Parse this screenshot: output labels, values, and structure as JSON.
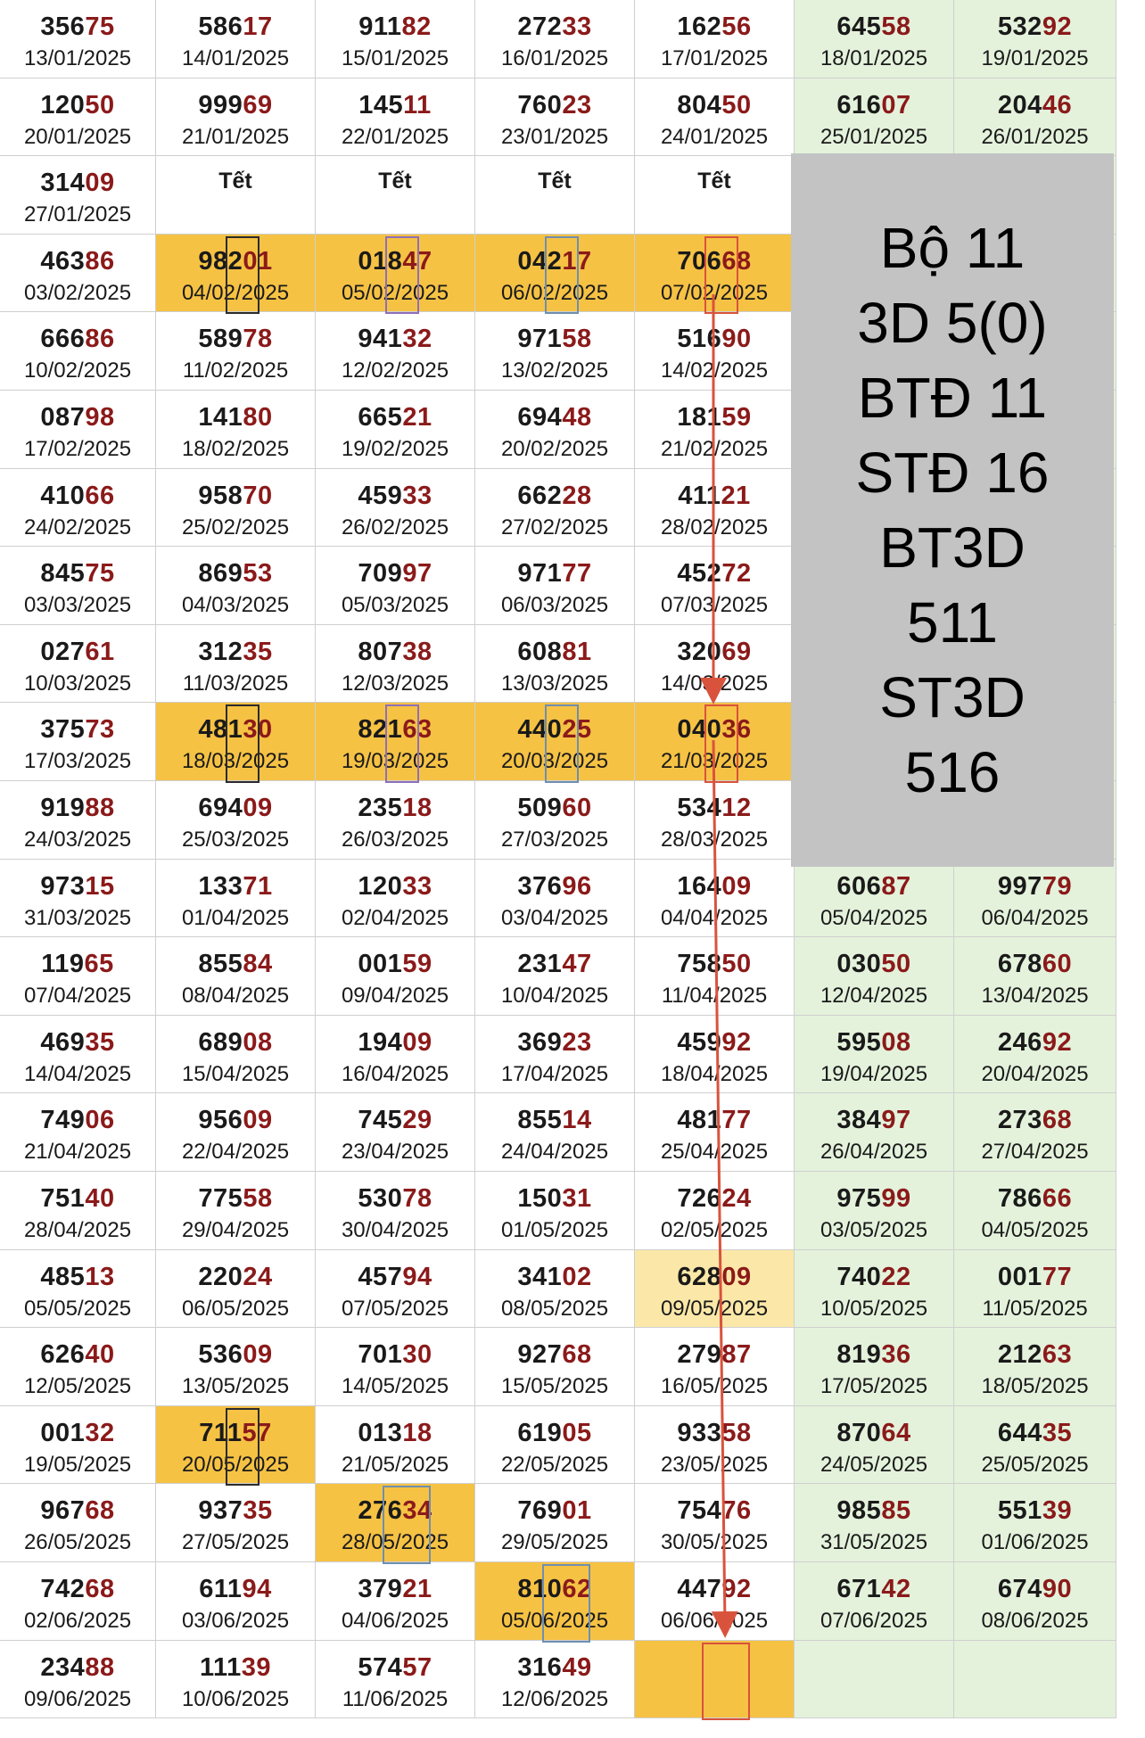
{
  "rows": [
    [
      [
        "35675",
        "13/01/2025"
      ],
      [
        "58617",
        "14/01/2025"
      ],
      [
        "91182",
        "15/01/2025"
      ],
      [
        "27233",
        "16/01/2025"
      ],
      [
        "16256",
        "17/01/2025"
      ],
      [
        "64558",
        "18/01/2025"
      ],
      [
        "53292",
        "19/01/2025"
      ]
    ],
    [
      [
        "12050",
        "20/01/2025"
      ],
      [
        "99969",
        "21/01/2025"
      ],
      [
        "14511",
        "22/01/2025"
      ],
      [
        "76023",
        "23/01/2025"
      ],
      [
        "80450",
        "24/01/2025"
      ],
      [
        "61607",
        "25/01/2025"
      ],
      [
        "20446",
        "26/01/2025"
      ]
    ],
    [
      [
        "31409",
        "27/01/2025"
      ],
      [
        "Tết",
        ""
      ],
      [
        "Tết",
        ""
      ],
      [
        "Tết",
        ""
      ],
      [
        "Tết",
        ""
      ],
      [
        "",
        ""
      ],
      [
        "",
        ""
      ]
    ],
    [
      [
        "46386",
        "03/02/2025"
      ],
      [
        "98201",
        "04/02/2025"
      ],
      [
        "01847",
        "05/02/2025"
      ],
      [
        "04217",
        "06/02/2025"
      ],
      [
        "70668",
        "07/02/2025"
      ],
      [
        "",
        ""
      ],
      [
        "",
        ""
      ]
    ],
    [
      [
        "66686",
        "10/02/2025"
      ],
      [
        "58978",
        "11/02/2025"
      ],
      [
        "94132",
        "12/02/2025"
      ],
      [
        "97158",
        "13/02/2025"
      ],
      [
        "51690",
        "14/02/2025"
      ],
      [
        "",
        ""
      ],
      [
        "",
        ""
      ]
    ],
    [
      [
        "08798",
        "17/02/2025"
      ],
      [
        "14180",
        "18/02/2025"
      ],
      [
        "66521",
        "19/02/2025"
      ],
      [
        "69448",
        "20/02/2025"
      ],
      [
        "18159",
        "21/02/2025"
      ],
      [
        "",
        ""
      ],
      [
        "",
        ""
      ]
    ],
    [
      [
        "41066",
        "24/02/2025"
      ],
      [
        "95870",
        "25/02/2025"
      ],
      [
        "45933",
        "26/02/2025"
      ],
      [
        "66228",
        "27/02/2025"
      ],
      [
        "41121",
        "28/02/2025"
      ],
      [
        "",
        ""
      ],
      [
        "",
        ""
      ]
    ],
    [
      [
        "84575",
        "03/03/2025"
      ],
      [
        "86953",
        "04/03/2025"
      ],
      [
        "70997",
        "05/03/2025"
      ],
      [
        "97177",
        "06/03/2025"
      ],
      [
        "45272",
        "07/03/2025"
      ],
      [
        "",
        ""
      ],
      [
        "",
        ""
      ]
    ],
    [
      [
        "02761",
        "10/03/2025"
      ],
      [
        "31235",
        "11/03/2025"
      ],
      [
        "80738",
        "12/03/2025"
      ],
      [
        "60881",
        "13/03/2025"
      ],
      [
        "32069",
        "14/03/2025"
      ],
      [
        "",
        ""
      ],
      [
        "",
        ""
      ]
    ],
    [
      [
        "37573",
        "17/03/2025"
      ],
      [
        "48130",
        "18/03/2025"
      ],
      [
        "82163",
        "19/03/2025"
      ],
      [
        "44025",
        "20/03/2025"
      ],
      [
        "04036",
        "21/03/2025"
      ],
      [
        "",
        ""
      ],
      [
        "",
        ""
      ]
    ],
    [
      [
        "91988",
        "24/03/2025"
      ],
      [
        "69409",
        "25/03/2025"
      ],
      [
        "23518",
        "26/03/2025"
      ],
      [
        "50960",
        "27/03/2025"
      ],
      [
        "53412",
        "28/03/2025"
      ],
      [
        "",
        ""
      ],
      [
        "",
        ""
      ]
    ],
    [
      [
        "97315",
        "31/03/2025"
      ],
      [
        "13371",
        "01/04/2025"
      ],
      [
        "12033",
        "02/04/2025"
      ],
      [
        "37696",
        "03/04/2025"
      ],
      [
        "16409",
        "04/04/2025"
      ],
      [
        "60687",
        "05/04/2025"
      ],
      [
        "99779",
        "06/04/2025"
      ]
    ],
    [
      [
        "11965",
        "07/04/2025"
      ],
      [
        "85584",
        "08/04/2025"
      ],
      [
        "00159",
        "09/04/2025"
      ],
      [
        "23147",
        "10/04/2025"
      ],
      [
        "75850",
        "11/04/2025"
      ],
      [
        "03050",
        "12/04/2025"
      ],
      [
        "67860",
        "13/04/2025"
      ]
    ],
    [
      [
        "46935",
        "14/04/2025"
      ],
      [
        "68908",
        "15/04/2025"
      ],
      [
        "19409",
        "16/04/2025"
      ],
      [
        "36923",
        "17/04/2025"
      ],
      [
        "45992",
        "18/04/2025"
      ],
      [
        "59508",
        "19/04/2025"
      ],
      [
        "24692",
        "20/04/2025"
      ]
    ],
    [
      [
        "74906",
        "21/04/2025"
      ],
      [
        "95609",
        "22/04/2025"
      ],
      [
        "74529",
        "23/04/2025"
      ],
      [
        "85514",
        "24/04/2025"
      ],
      [
        "48177",
        "25/04/2025"
      ],
      [
        "38497",
        "26/04/2025"
      ],
      [
        "27368",
        "27/04/2025"
      ]
    ],
    [
      [
        "75140",
        "28/04/2025"
      ],
      [
        "77558",
        "29/04/2025"
      ],
      [
        "53078",
        "30/04/2025"
      ],
      [
        "15031",
        "01/05/2025"
      ],
      [
        "72624",
        "02/05/2025"
      ],
      [
        "97599",
        "03/05/2025"
      ],
      [
        "78666",
        "04/05/2025"
      ]
    ],
    [
      [
        "48513",
        "05/05/2025"
      ],
      [
        "22024",
        "06/05/2025"
      ],
      [
        "45794",
        "07/05/2025"
      ],
      [
        "34102",
        "08/05/2025"
      ],
      [
        "62809",
        "09/05/2025"
      ],
      [
        "74022",
        "10/05/2025"
      ],
      [
        "00177",
        "11/05/2025"
      ]
    ],
    [
      [
        "62640",
        "12/05/2025"
      ],
      [
        "53609",
        "13/05/2025"
      ],
      [
        "70130",
        "14/05/2025"
      ],
      [
        "92768",
        "15/05/2025"
      ],
      [
        "27987",
        "16/05/2025"
      ],
      [
        "81936",
        "17/05/2025"
      ],
      [
        "21263",
        "18/05/2025"
      ]
    ],
    [
      [
        "00132",
        "19/05/2025"
      ],
      [
        "71157",
        "20/05/2025"
      ],
      [
        "01318",
        "21/05/2025"
      ],
      [
        "61905",
        "22/05/2025"
      ],
      [
        "93358",
        "23/05/2025"
      ],
      [
        "87064",
        "24/05/2025"
      ],
      [
        "64435",
        "25/05/2025"
      ]
    ],
    [
      [
        "96768",
        "26/05/2025"
      ],
      [
        "93735",
        "27/05/2025"
      ],
      [
        "27634",
        "28/05/2025"
      ],
      [
        "76901",
        "29/05/2025"
      ],
      [
        "75476",
        "30/05/2025"
      ],
      [
        "98585",
        "31/05/2025"
      ],
      [
        "55139",
        "01/06/2025"
      ]
    ],
    [
      [
        "74268",
        "02/06/2025"
      ],
      [
        "61194",
        "03/06/2025"
      ],
      [
        "37921",
        "04/06/2025"
      ],
      [
        "81062",
        "05/06/2025"
      ],
      [
        "44792",
        "06/06/2025"
      ],
      [
        "67142",
        "07/06/2025"
      ],
      [
        "67490",
        "08/06/2025"
      ]
    ],
    [
      [
        "23488",
        "09/06/2025"
      ],
      [
        "11139",
        "10/06/2025"
      ],
      [
        "57457",
        "11/06/2025"
      ],
      [
        "31649",
        "12/06/2025"
      ],
      [
        "",
        ""
      ],
      [
        "",
        ""
      ],
      [
        "",
        ""
      ]
    ]
  ],
  "summary": [
    "Bộ 11",
    "3D 5(0)",
    "BTĐ 11",
    "STĐ 16",
    "BT3D",
    "511",
    "ST3D",
    "516"
  ],
  "colors": {
    "highlight": "#f6c244",
    "light_highlight": "#fbe8a8",
    "weekend_bg": "#e4f2dc",
    "last_two_digits": "#8b1a1a",
    "arrow": "#d9533c",
    "box_black": "#2b2b2b",
    "box_purple": "#8e6fb8",
    "box_blue": "#6f8fb0",
    "box_red": "#d9533c",
    "summary_bg": "#c3c3c3"
  }
}
